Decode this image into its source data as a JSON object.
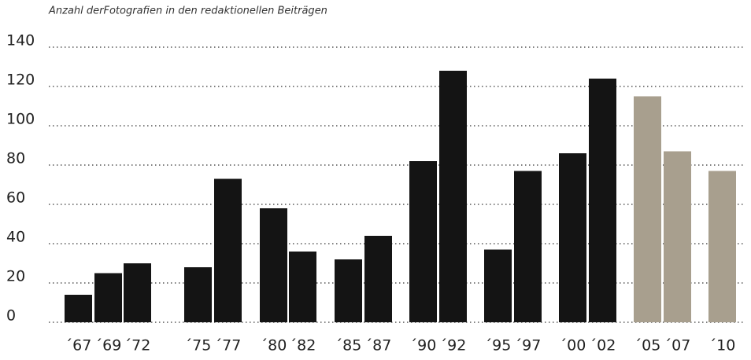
{
  "chart_data": {
    "type": "bar",
    "title": "Anzahl derFotografien in den redaktionellen Beiträgen",
    "categories": [
      "´67",
      "´69",
      "´72",
      "´75",
      "´77",
      "´80",
      "´82",
      "´85",
      "´87",
      "´90",
      "´92",
      "´95",
      "´97",
      "´00",
      "´02",
      "´05",
      "´07",
      "´10"
    ],
    "values": [
      14,
      25,
      30,
      28,
      73,
      58,
      36,
      32,
      44,
      82,
      128,
      37,
      77,
      86,
      124,
      115,
      87,
      77
    ],
    "colors": [
      "#141414",
      "#141414",
      "#141414",
      "#141414",
      "#141414",
      "#141414",
      "#141414",
      "#141414",
      "#141414",
      "#141414",
      "#141414",
      "#141414",
      "#141414",
      "#141414",
      "#141414",
      "#a89f8e",
      "#a89f8e",
      "#a89f8e"
    ],
    "ylim": [
      0,
      140
    ],
    "yticks": [
      0,
      20,
      40,
      60,
      80,
      100,
      120,
      140
    ],
    "grid": true
  }
}
